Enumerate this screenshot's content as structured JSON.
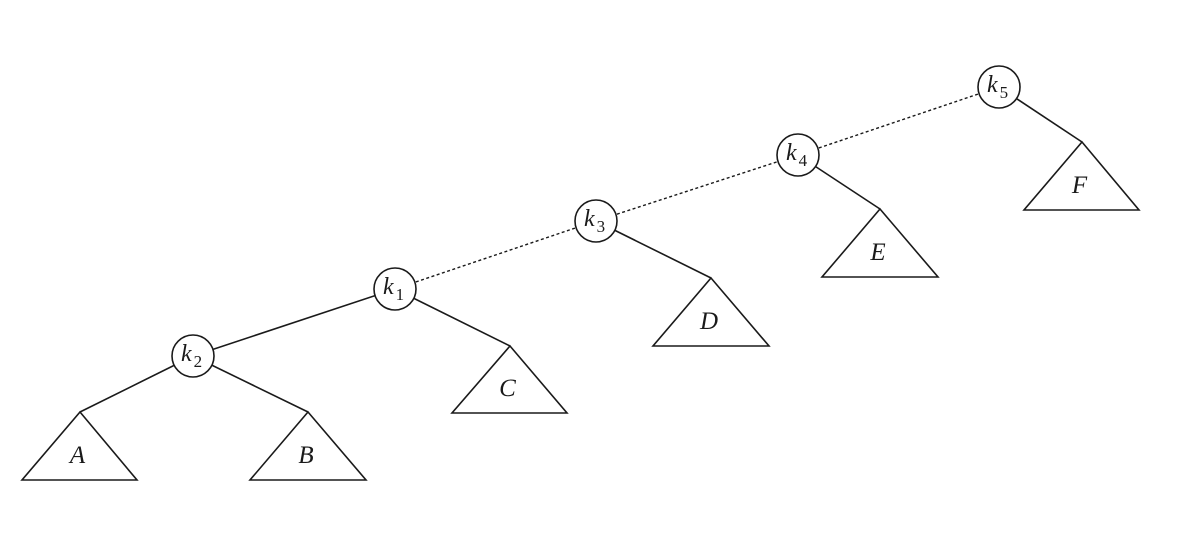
{
  "nodes": [
    {
      "id": "k1",
      "letter": "k",
      "sub": "1"
    },
    {
      "id": "k2",
      "letter": "k",
      "sub": "2"
    },
    {
      "id": "k3",
      "letter": "k",
      "sub": "3"
    },
    {
      "id": "k4",
      "letter": "k",
      "sub": "4"
    },
    {
      "id": "k5",
      "letter": "k",
      "sub": "5"
    }
  ],
  "subtrees": [
    {
      "id": "A",
      "label": "A"
    },
    {
      "id": "B",
      "label": "B"
    },
    {
      "id": "C",
      "label": "C"
    },
    {
      "id": "D",
      "label": "D"
    },
    {
      "id": "E",
      "label": "E"
    },
    {
      "id": "F",
      "label": "F"
    }
  ],
  "edges": [
    {
      "from": "k1",
      "to": "k2",
      "style": "solid"
    },
    {
      "from": "k1",
      "to": "C",
      "style": "solid"
    },
    {
      "from": "k2",
      "to": "A",
      "style": "solid"
    },
    {
      "from": "k2",
      "to": "B",
      "style": "solid"
    },
    {
      "from": "k3",
      "to": "D",
      "style": "solid"
    },
    {
      "from": "k4",
      "to": "E",
      "style": "solid"
    },
    {
      "from": "k5",
      "to": "F",
      "style": "solid"
    },
    {
      "from": "k1",
      "to": "k3",
      "style": "dashed"
    },
    {
      "from": "k3",
      "to": "k4",
      "style": "dashed"
    },
    {
      "from": "k4",
      "to": "k5",
      "style": "dashed"
    }
  ]
}
